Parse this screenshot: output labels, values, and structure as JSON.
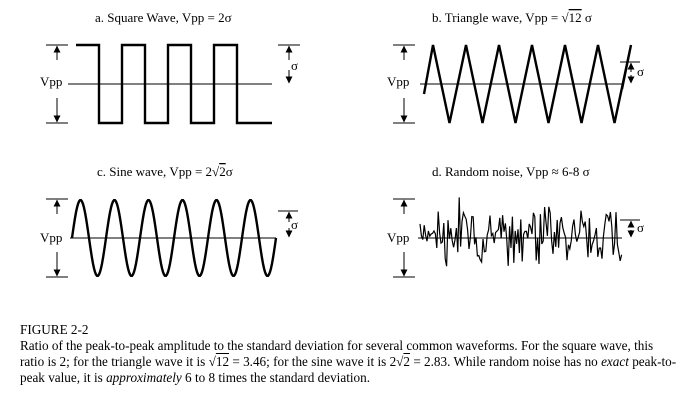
{
  "panels": [
    {
      "id": "a",
      "kind": "square",
      "title_prefix": "a.  Square Wave, Vpp = 2σ",
      "vpp_label": "Vpp",
      "sigma_label": "σ"
    },
    {
      "id": "b",
      "kind": "triangle",
      "title_prefix": "b. Triangle wave, Vpp = ",
      "radical": "12",
      "title_suffix": " σ",
      "vpp_label": "Vpp",
      "sigma_label": "σ"
    },
    {
      "id": "c",
      "kind": "sine",
      "title_prefix": "c. Sine wave, Vpp = 2",
      "radical": "2",
      "title_suffix": "σ",
      "vpp_label": "Vpp",
      "sigma_label": "σ"
    },
    {
      "id": "d",
      "kind": "noise",
      "title_prefix": "d. Random noise, Vpp ≈ 6-8 σ",
      "vpp_label": "Vpp",
      "sigma_label": "σ"
    }
  ],
  "caption": {
    "heading": "FIGURE 2-2",
    "s1": "Ratio of the peak-to-peak amplitude to the standard deviation for several common waveforms. For the square wave, this ratio is 2; for the triangle wave it is ",
    "r1": "12",
    "s2": " = 3.46; for the sine wave it is 2",
    "r2": "2",
    "s3": " = 2.83.  While random noise has no ",
    "em1": "exact",
    "s4": " peak-to-peak value, it is ",
    "em2": "approximately",
    "s5": " 6 to 8 times the standard deviation."
  }
}
